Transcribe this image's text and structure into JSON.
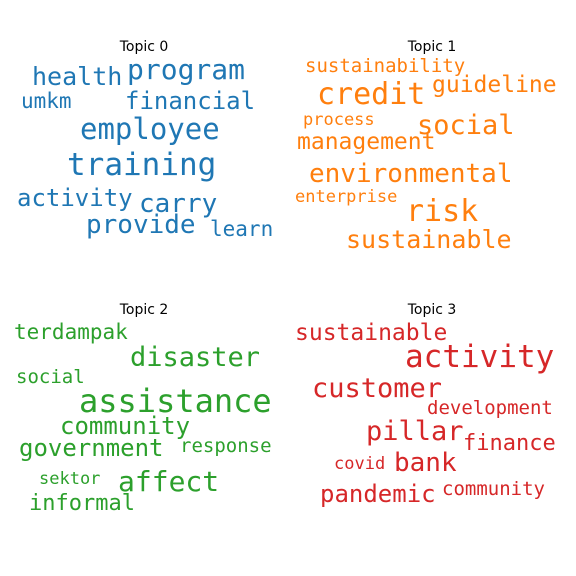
{
  "chart_data": [
    {
      "type": "wordcloud",
      "title": "Topic 0",
      "color": "#1f77b4",
      "words": [
        {
          "text": "training",
          "weight": 1.0
        },
        {
          "text": "employee",
          "weight": 0.9
        },
        {
          "text": "program",
          "weight": 0.85
        },
        {
          "text": "health",
          "weight": 0.75
        },
        {
          "text": "financial",
          "weight": 0.7
        },
        {
          "text": "carry",
          "weight": 0.7
        },
        {
          "text": "provide",
          "weight": 0.7
        },
        {
          "text": "activity",
          "weight": 0.65
        },
        {
          "text": "umkm",
          "weight": 0.6
        },
        {
          "text": "learn",
          "weight": 0.55
        }
      ]
    },
    {
      "type": "wordcloud",
      "title": "Topic 1",
      "color": "#ff7f0e",
      "words": [
        {
          "text": "credit",
          "weight": 1.0
        },
        {
          "text": "risk",
          "weight": 0.9
        },
        {
          "text": "environmental",
          "weight": 0.8
        },
        {
          "text": "social",
          "weight": 0.8
        },
        {
          "text": "sustainable",
          "weight": 0.75
        },
        {
          "text": "guideline",
          "weight": 0.7
        },
        {
          "text": "management",
          "weight": 0.7
        },
        {
          "text": "sustainability",
          "weight": 0.6
        },
        {
          "text": "process",
          "weight": 0.5
        },
        {
          "text": "enterprise",
          "weight": 0.5
        }
      ]
    },
    {
      "type": "wordcloud",
      "title": "Topic 2",
      "color": "#2ca02c",
      "words": [
        {
          "text": "assistance",
          "weight": 1.0
        },
        {
          "text": "disaster",
          "weight": 0.85
        },
        {
          "text": "affect",
          "weight": 0.85
        },
        {
          "text": "community",
          "weight": 0.75
        },
        {
          "text": "government",
          "weight": 0.75
        },
        {
          "text": "terdampak",
          "weight": 0.65
        },
        {
          "text": "informal",
          "weight": 0.65
        },
        {
          "text": "social",
          "weight": 0.6
        },
        {
          "text": "response",
          "weight": 0.6
        },
        {
          "text": "sektor",
          "weight": 0.55
        }
      ]
    },
    {
      "type": "wordcloud",
      "title": "Topic 3",
      "color": "#d62728",
      "words": [
        {
          "text": "activity",
          "weight": 1.0
        },
        {
          "text": "customer",
          "weight": 0.9
        },
        {
          "text": "pillar",
          "weight": 0.85
        },
        {
          "text": "bank",
          "weight": 0.8
        },
        {
          "text": "pandemic",
          "weight": 0.75
        },
        {
          "text": "sustainable",
          "weight": 0.75
        },
        {
          "text": "finance",
          "weight": 0.7
        },
        {
          "text": "development",
          "weight": 0.6
        },
        {
          "text": "community",
          "weight": 0.6
        },
        {
          "text": "covid",
          "weight": 0.55
        }
      ]
    }
  ]
}
